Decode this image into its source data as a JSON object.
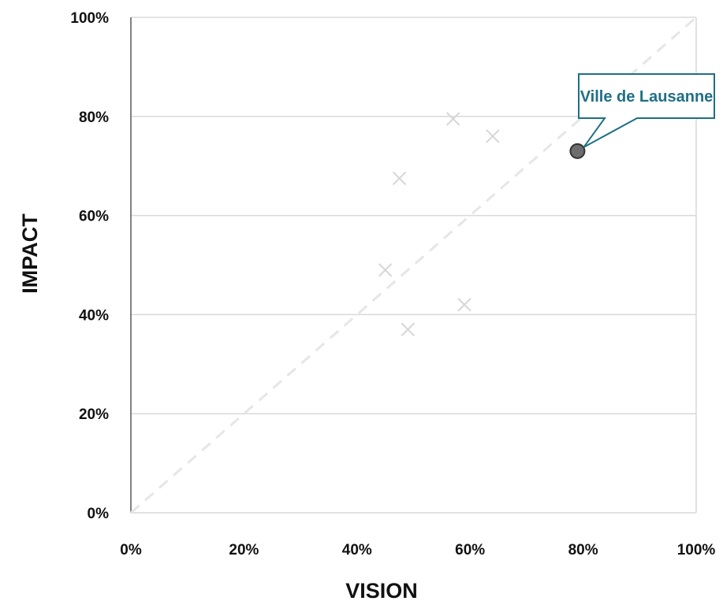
{
  "chart_data": {
    "type": "scatter",
    "title": "",
    "xlabel": "VISION",
    "ylabel": "IMPACT",
    "xlim": [
      0,
      1
    ],
    "ylim": [
      0,
      1
    ],
    "x_ticks": [
      "0%",
      "20%",
      "40%",
      "60%",
      "80%",
      "100%"
    ],
    "y_ticks": [
      "0%",
      "20%",
      "40%",
      "60%",
      "80%",
      "100%"
    ],
    "grid": "horizontal",
    "reference_line": {
      "from": [
        0,
        0
      ],
      "to": [
        1,
        1
      ],
      "style": "dashed"
    },
    "series": [
      {
        "marker": "x",
        "color": "#d6d6d6",
        "points": [
          {
            "x": 0.57,
            "y": 0.795
          },
          {
            "x": 0.64,
            "y": 0.76
          },
          {
            "x": 0.475,
            "y": 0.675
          },
          {
            "x": 0.45,
            "y": 0.49
          },
          {
            "x": 0.59,
            "y": 0.42
          },
          {
            "x": 0.49,
            "y": 0.37
          }
        ]
      },
      {
        "marker": "circle",
        "color": "#6d6d6d",
        "points": [
          {
            "x": 0.79,
            "y": 0.73,
            "label": "Ville de Lausanne"
          }
        ]
      }
    ],
    "annotation_color": "#1f6f86"
  }
}
